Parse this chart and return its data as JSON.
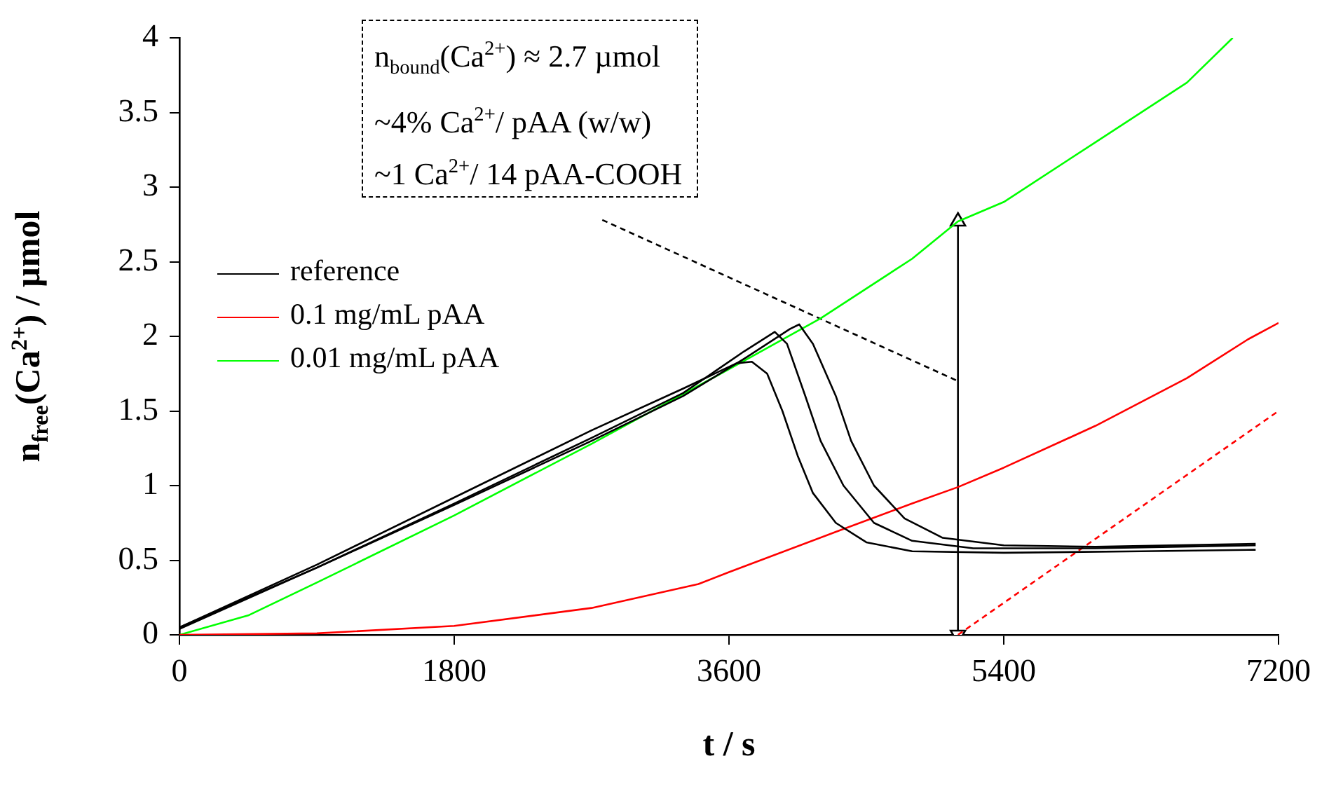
{
  "chart_data": {
    "type": "line",
    "xlabel": "t / s",
    "ylabel": "n$_{free}$(Ca$^{2+}$) / µmol",
    "xlim": [
      0,
      7200
    ],
    "xticks": [
      0,
      1800,
      3600,
      5400,
      7200
    ],
    "ylim": [
      0,
      4
    ],
    "yticks": [
      0,
      0.5,
      1,
      1.5,
      2,
      2.5,
      3,
      3.5,
      4
    ],
    "grid": false,
    "legend": "top left",
    "marker": "none",
    "line_style": "solid",
    "annotations": [
      "n$_{bound}$(Ca$^{2+}$) ≈ 2.7 µmol",
      "~4% Ca$^{2+}$/ pAA (w/w)",
      "~1 Ca$^{2+}$/ 14 pAA-COOH"
    ],
    "series": [
      {
        "name": "reference",
        "color": "#000000",
        "x": [
          0,
          900,
          1800,
          2700,
          3300,
          3650,
          3750,
          3850,
          3950,
          4050,
          4150,
          4300,
          4500,
          4800,
          5400,
          6300,
          7050
        ],
        "values": [
          0.05,
          0.47,
          0.92,
          1.37,
          1.65,
          1.82,
          1.83,
          1.75,
          1.5,
          1.2,
          0.95,
          0.75,
          0.62,
          0.56,
          0.55,
          0.56,
          0.57
        ]
      },
      {
        "color": "#000000",
        "x": [
          0,
          900,
          1800,
          2700,
          3300,
          3700,
          3900,
          3980,
          4100,
          4200,
          4350,
          4550,
          4800,
          5200,
          6000,
          7050
        ],
        "values": [
          0.05,
          0.45,
          0.88,
          1.32,
          1.62,
          1.9,
          2.03,
          1.95,
          1.6,
          1.3,
          1.0,
          0.75,
          0.63,
          0.58,
          0.58,
          0.6
        ]
      },
      {
        "color": "#000000",
        "x": [
          0,
          900,
          1800,
          2700,
          3300,
          3700,
          4000,
          4060,
          4150,
          4300,
          4400,
          4550,
          4750,
          5000,
          5400,
          6000,
          7050
        ],
        "values": [
          0.04,
          0.45,
          0.87,
          1.3,
          1.6,
          1.85,
          2.05,
          2.08,
          1.95,
          1.6,
          1.3,
          1.0,
          0.78,
          0.65,
          0.6,
          0.59,
          0.61
        ]
      },
      {
        "name": "0.1 mg/mL pAA",
        "color": "#ff0000",
        "x": [
          0,
          900,
          1800,
          2700,
          3400,
          3600,
          4300,
          4800,
          5100,
          5400,
          6000,
          6600,
          7000,
          7200
        ],
        "values": [
          0,
          0.01,
          0.06,
          0.18,
          0.34,
          0.42,
          0.69,
          0.88,
          0.99,
          1.12,
          1.4,
          1.72,
          1.98,
          2.09
        ]
      },
      {
        "name": "0.01 mg/mL pAA",
        "color": "#00ff00",
        "x": [
          0,
          450,
          900,
          1800,
          2700,
          3600,
          4200,
          4800,
          5100,
          5400,
          6000,
          6600,
          6900
        ],
        "values": [
          0,
          0.13,
          0.35,
          0.8,
          1.28,
          1.78,
          2.12,
          2.52,
          2.77,
          2.9,
          3.3,
          3.7,
          4.0
        ]
      },
      {
        "color": "#ff0000",
        "line_style": "dashed",
        "x": [
          5100,
          7200
        ],
        "values": [
          0,
          1.5
        ]
      },
      {
        "color": "#000000",
        "line_style": "dashed",
        "x": [
          2770,
          5100
        ],
        "values": [
          2.78,
          1.7
        ]
      },
      {
        "color": "#000000",
        "marker": "triangle",
        "x": [
          5100,
          5100
        ],
        "values": [
          0,
          2.77
        ]
      }
    ]
  }
}
